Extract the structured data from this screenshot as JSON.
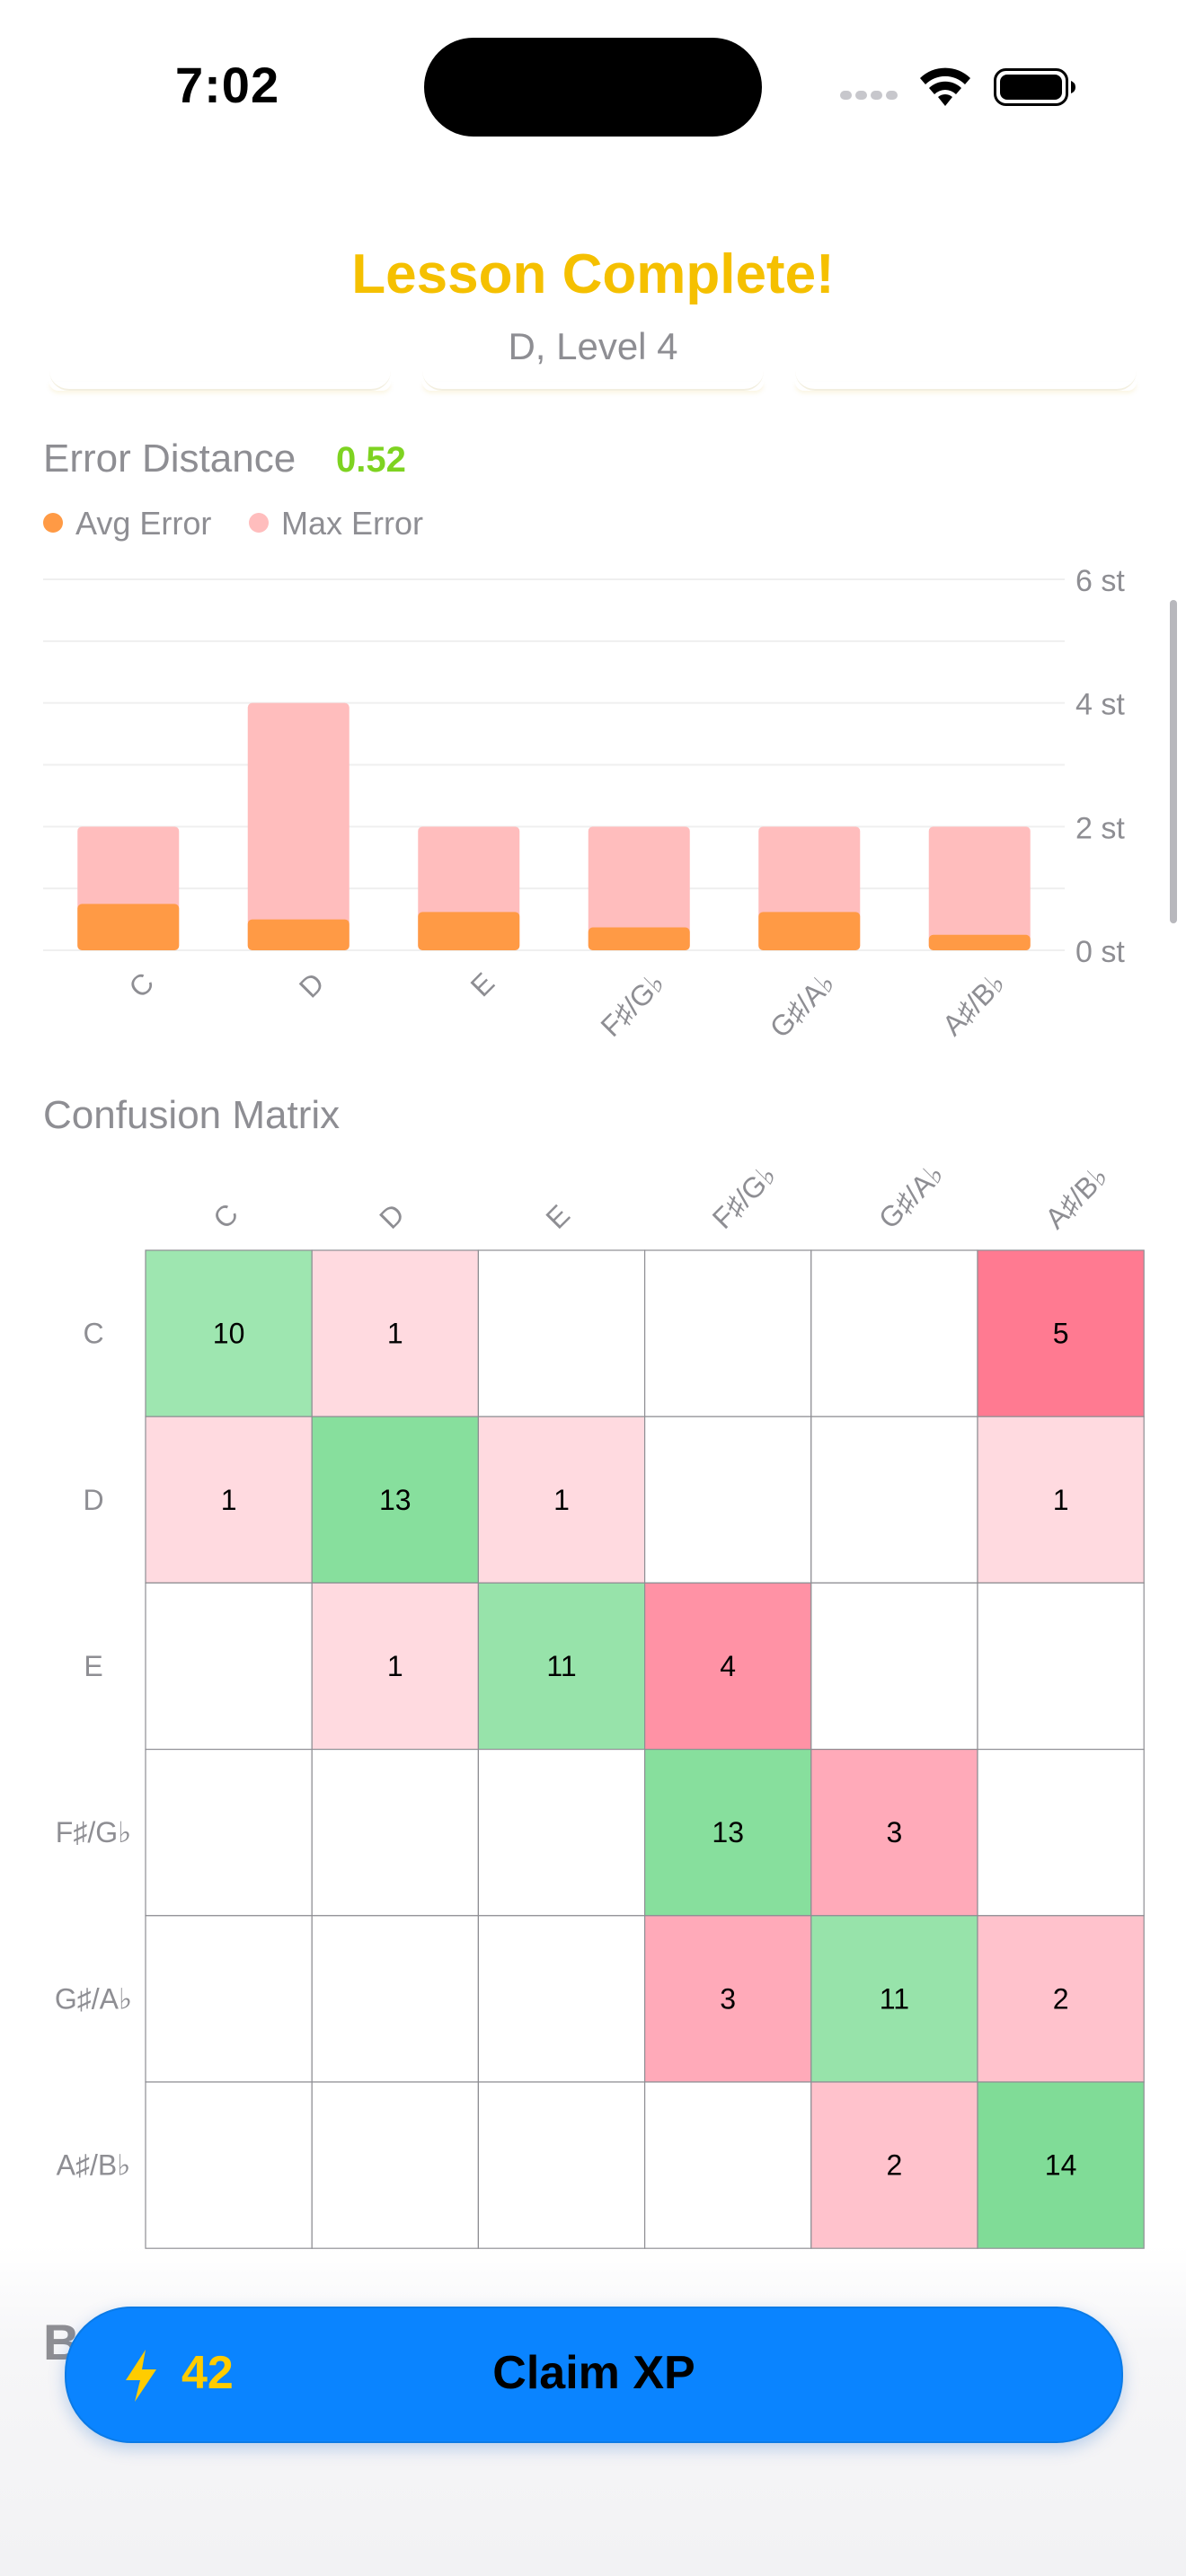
{
  "status_bar": {
    "time": "7:02"
  },
  "header": {
    "title": "Lesson Complete!",
    "subtitle": "D, Level 4"
  },
  "error_section": {
    "title": "Error Distance",
    "value": "0.52",
    "legend": [
      {
        "label": "Avg Error",
        "color": "#ff9a45"
      },
      {
        "label": "Max Error",
        "color": "#ffbdbd"
      }
    ]
  },
  "chart_data": {
    "type": "bar",
    "categories": [
      "C",
      "D",
      "E",
      "F♯/G♭",
      "G♯/A♭",
      "A♯/B♭"
    ],
    "series": [
      {
        "name": "Avg Error",
        "values": [
          0.75,
          0.5,
          0.62,
          0.37,
          0.62,
          0.25
        ],
        "color": "#ff9a45"
      },
      {
        "name": "Max Error",
        "values": [
          2,
          4,
          2,
          2,
          2,
          2
        ],
        "color": "#ffbdbd"
      }
    ],
    "ylim": [
      0,
      6
    ],
    "yticks": [
      "0 st",
      "2 st",
      "4 st",
      "6 st"
    ],
    "grid": true
  },
  "confusion_matrix": {
    "title": "Confusion Matrix",
    "labels": [
      "C",
      "D",
      "E",
      "F♯/G♭",
      "G♯/A♭",
      "A♯/B♭"
    ],
    "cells": [
      [
        10,
        1,
        null,
        null,
        null,
        5
      ],
      [
        1,
        13,
        1,
        null,
        null,
        1
      ],
      [
        null,
        1,
        11,
        4,
        null,
        null
      ],
      [
        null,
        null,
        null,
        13,
        3,
        null
      ],
      [
        null,
        null,
        null,
        3,
        11,
        2
      ],
      [
        null,
        null,
        null,
        null,
        2,
        14
      ]
    ]
  },
  "footer": {
    "partial_heading": "B",
    "xp_amount": "42",
    "claim_label": "Claim XP"
  }
}
